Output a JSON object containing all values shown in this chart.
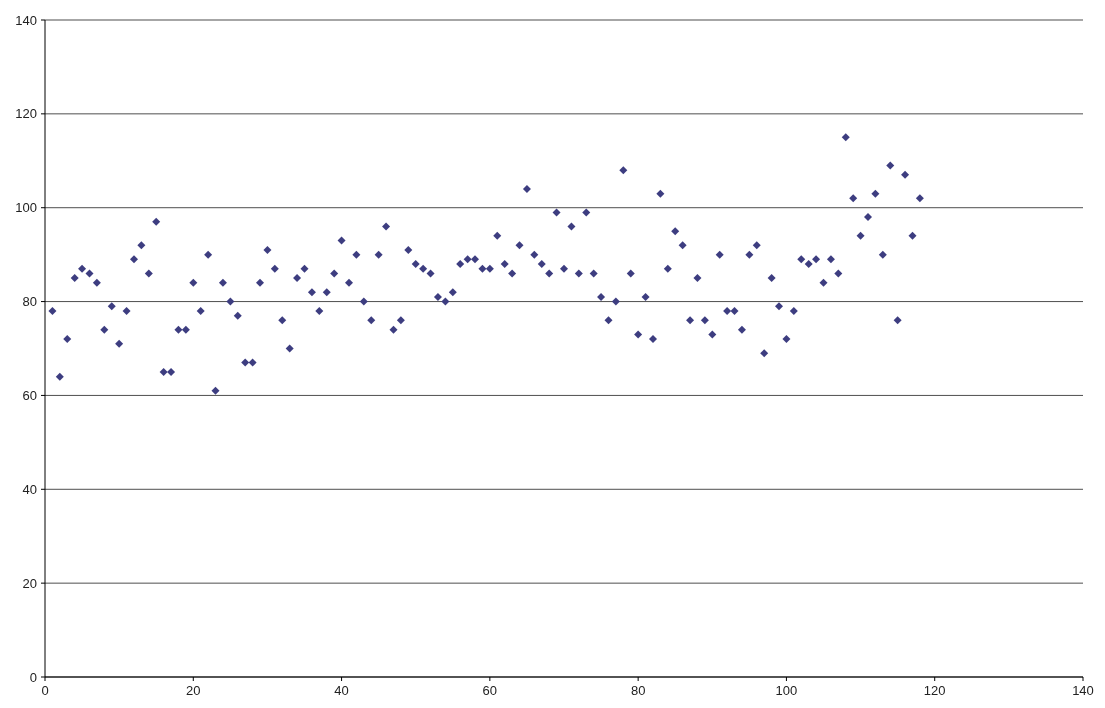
{
  "chart_data": {
    "type": "scatter",
    "x": [
      1,
      2,
      3,
      4,
      5,
      6,
      7,
      8,
      9,
      10,
      11,
      12,
      13,
      14,
      15,
      16,
      17,
      18,
      19,
      20,
      21,
      22,
      23,
      24,
      25,
      26,
      27,
      28,
      29,
      30,
      31,
      32,
      33,
      34,
      35,
      36,
      37,
      38,
      39,
      40,
      41,
      42,
      43,
      44,
      45,
      46,
      47,
      48,
      49,
      50,
      51,
      52,
      53,
      54,
      55,
      56,
      57,
      58,
      59,
      60,
      61,
      62,
      63,
      64,
      65,
      66,
      67,
      68,
      69,
      70,
      71,
      72,
      73,
      74,
      75,
      76,
      77,
      78,
      79,
      80,
      81,
      82,
      83,
      84,
      85,
      86,
      87,
      88,
      89,
      90,
      91,
      92,
      93,
      94,
      95,
      96,
      97,
      98,
      99,
      100,
      101,
      102,
      103,
      104,
      105,
      106,
      107,
      108,
      109,
      110,
      111,
      112,
      113,
      114,
      115,
      116,
      117,
      118
    ],
    "series": [
      {
        "color": "#3d3d80",
        "values": [
          78,
          64,
          72,
          85,
          87,
          86,
          84,
          74,
          79,
          71,
          78,
          89,
          92,
          86,
          97,
          65,
          65,
          74,
          74,
          84,
          78,
          90,
          61,
          84,
          80,
          77,
          67,
          67,
          84,
          91,
          87,
          76,
          70,
          85,
          87,
          82,
          78,
          82,
          86,
          93,
          84,
          90,
          80,
          76,
          90,
          96,
          74,
          76,
          91,
          88,
          87,
          86,
          81,
          80,
          82,
          88,
          89,
          89,
          87,
          87,
          94,
          88,
          86,
          92,
          104,
          90,
          88,
          86,
          99,
          87,
          96,
          86,
          99,
          86,
          81,
          76,
          80,
          108,
          86,
          73,
          81,
          72,
          103,
          87,
          95,
          92,
          76,
          85,
          76,
          73,
          90,
          78,
          78,
          74,
          90,
          92,
          69,
          85,
          79,
          72,
          78,
          89,
          88,
          89,
          84,
          89,
          86,
          115,
          102,
          94,
          98,
          103,
          90,
          109,
          76,
          107,
          94,
          102
        ]
      }
    ],
    "xlim": [
      0,
      140
    ],
    "xticks": [
      0,
      20,
      40,
      60,
      80,
      100,
      120,
      140
    ],
    "ylim": [
      0,
      140
    ],
    "yticks": [
      0,
      20,
      40,
      60,
      80,
      100,
      120,
      140
    ],
    "grid": "y",
    "marker": "diamond"
  }
}
